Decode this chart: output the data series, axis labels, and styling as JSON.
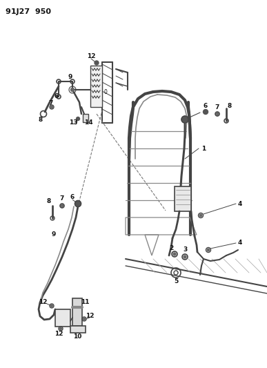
{
  "title": "91J27  950",
  "bg_color": "#ffffff",
  "line_color": "#444444",
  "text_color": "#111111",
  "fig_width": 3.87,
  "fig_height": 5.33,
  "dpi": 100
}
